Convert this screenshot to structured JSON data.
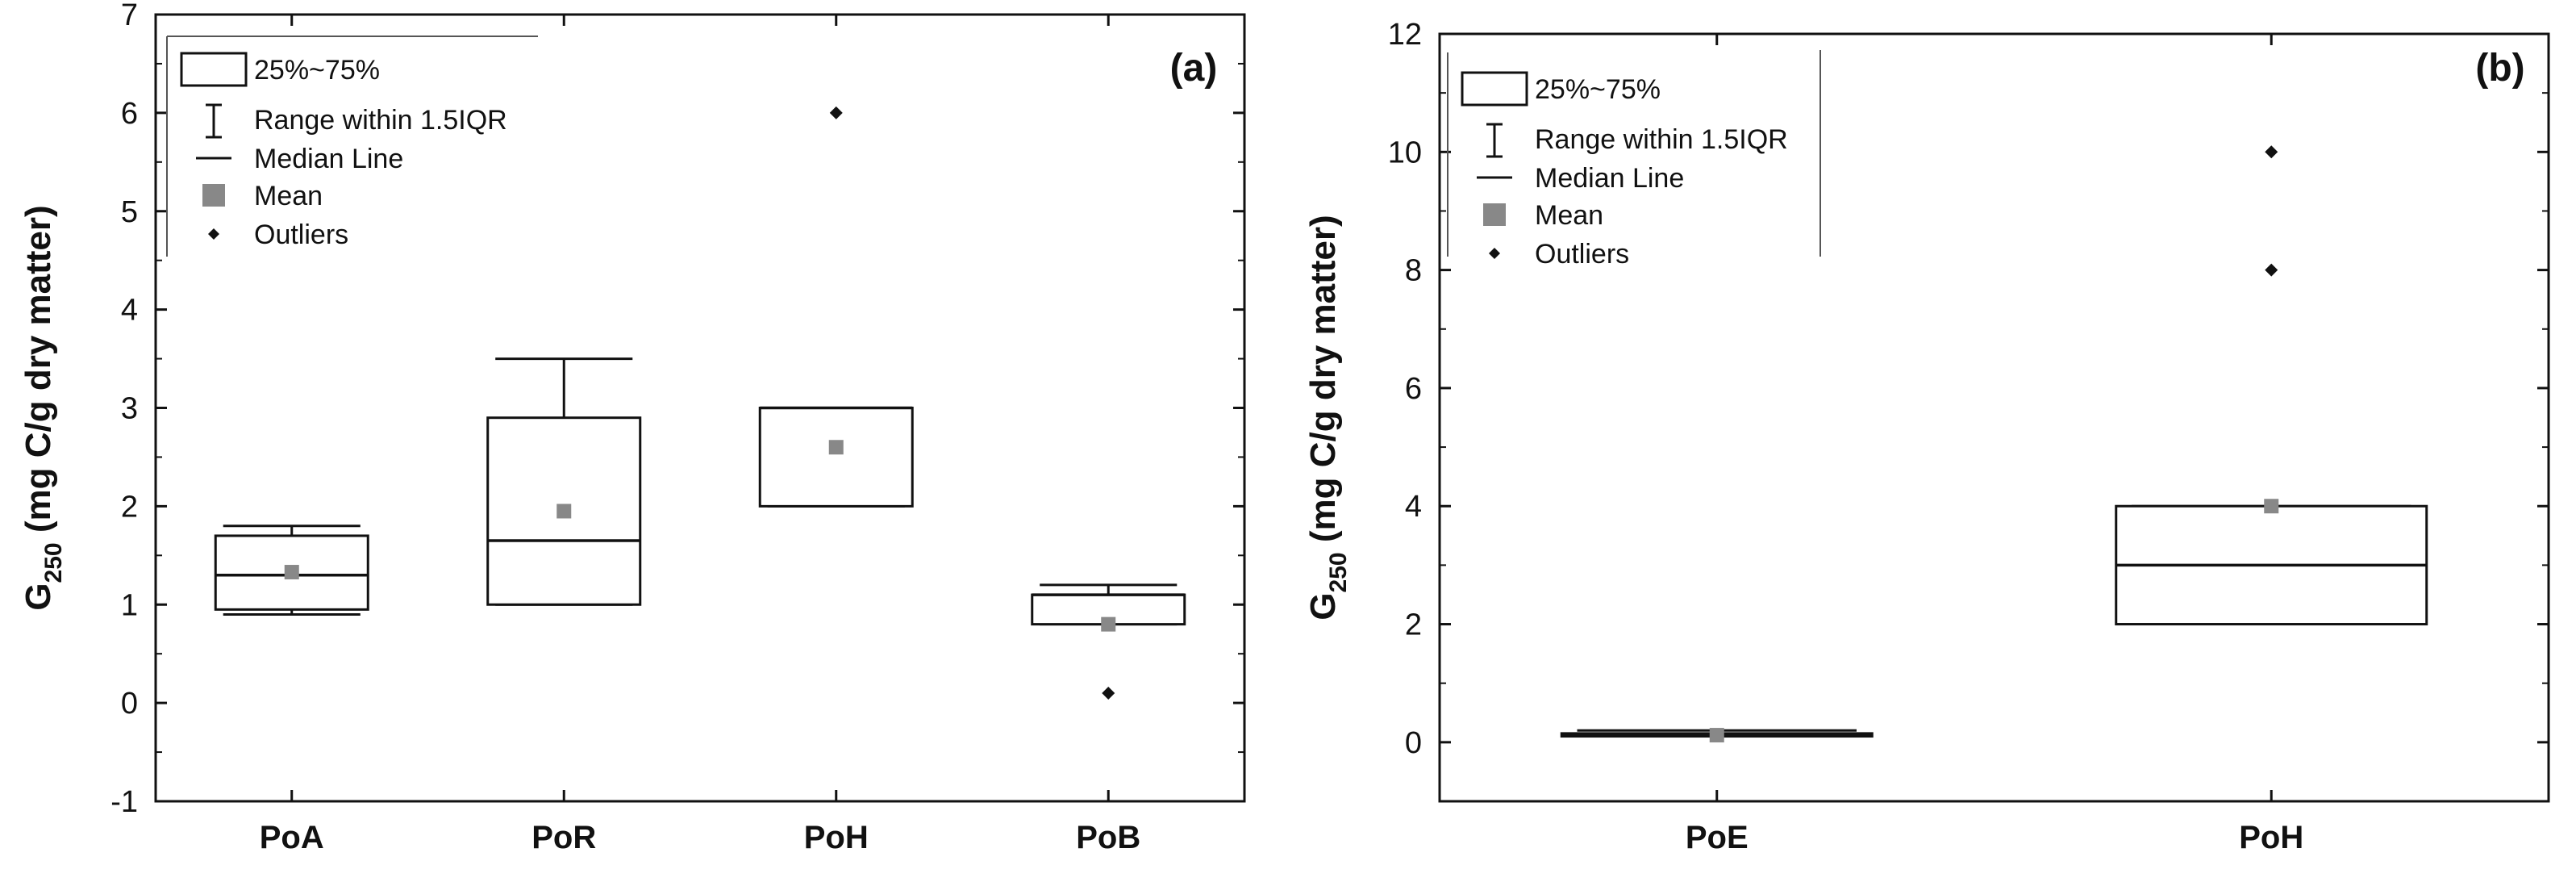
{
  "chart_data": [
    {
      "type": "box",
      "panel_label": "(a)",
      "ylabel_main": "G",
      "ylabel_sub": "250",
      "ylabel_rest": " (mg C/g dry matter)",
      "ylim": [
        -1,
        7
      ],
      "yticks": [
        "-1",
        "0",
        "1",
        "2",
        "3",
        "4",
        "5",
        "6",
        "7"
      ],
      "categories": [
        "PoA",
        "PoR",
        "PoH",
        "PoB"
      ],
      "boxes": [
        {
          "q1": 0.95,
          "q3": 1.7,
          "median": 1.3,
          "mean": 1.33,
          "whisker_low": 0.9,
          "whisker_high": 1.8,
          "outliers": []
        },
        {
          "q1": 1.0,
          "q3": 2.9,
          "median": 1.65,
          "mean": 1.95,
          "whisker_low": 1.0,
          "whisker_high": 3.5,
          "outliers": []
        },
        {
          "q1": 2.0,
          "q3": 3.0,
          "median": 3.0,
          "mean": 2.6,
          "whisker_low": 2.0,
          "whisker_high": 3.0,
          "outliers": [
            6.0
          ]
        },
        {
          "q1": 0.8,
          "q3": 1.1,
          "median": 1.1,
          "mean": 0.8,
          "whisker_low": 0.8,
          "whisker_high": 1.2,
          "outliers": [
            0.1
          ]
        }
      ],
      "legend": {
        "box": "25%~75%",
        "range": "Range within 1.5IQR",
        "median": "Median Line",
        "mean": "Mean",
        "outliers": "Outliers"
      }
    },
    {
      "type": "box",
      "panel_label": "(b)",
      "ylabel_main": "G",
      "ylabel_sub": "250",
      "ylabel_rest": " (mg C/g dry matter)",
      "ylim": [
        -1,
        12
      ],
      "yticks": [
        "0",
        "2",
        "4",
        "6",
        "8",
        "10",
        "12"
      ],
      "categories": [
        "PoE",
        "PoH"
      ],
      "boxes": [
        {
          "q1": 0.1,
          "q3": 0.15,
          "median": 0.12,
          "mean": 0.12,
          "whisker_low": 0.1,
          "whisker_high": 0.2,
          "outliers": []
        },
        {
          "q1": 2.0,
          "q3": 4.0,
          "median": 3.0,
          "mean": 4.0,
          "whisker_low": 2.0,
          "whisker_high": 4.0,
          "outliers": [
            8.0,
            10.0
          ]
        }
      ],
      "legend": {
        "box": "25%~75%",
        "range": "Range within 1.5IQR",
        "median": "Median Line",
        "mean": "Mean",
        "outliers": "Outliers"
      }
    }
  ]
}
